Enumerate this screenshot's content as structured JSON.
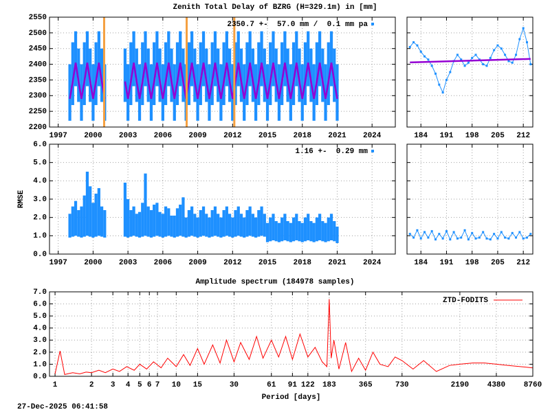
{
  "chart_data": [
    {
      "type": "range",
      "title": "Zenith Total Delay of BZRG (H=329.1m) in [mm]",
      "annotation": "2350.7 +-  57.0 mm /  0.1 mm pa",
      "color": "#1e90ff",
      "model_color": "#9400d3",
      "event_color": "#f5a040",
      "grid": true,
      "xlim": [
        1996.25,
        2026
      ],
      "xticks": [
        1997,
        2000,
        2003,
        2006,
        2009,
        2012,
        2015,
        2018,
        2021,
        2024
      ],
      "ylim": [
        2200,
        2550
      ],
      "yticks": [
        2200,
        2250,
        2300,
        2350,
        2400,
        2450,
        2500,
        2550
      ],
      "events": [
        2000.95,
        2008.05,
        2012.15
      ],
      "x": [
        1998,
        1998.25,
        1998.5,
        1998.75,
        1999,
        1999.25,
        1999.5,
        1999.75,
        2000,
        2000.25,
        2000.5,
        2000.75,
        2001,
        2002,
        2002.75,
        2003,
        2003.25,
        2003.5,
        2003.75,
        2004,
        2004.25,
        2004.5,
        2004.75,
        2005,
        2005.25,
        2005.5,
        2005.75,
        2006,
        2006.25,
        2006.5,
        2006.75,
        2007,
        2007.25,
        2007.5,
        2007.75,
        2008,
        2008.25,
        2008.5,
        2008.75,
        2009,
        2009.25,
        2009.5,
        2009.75,
        2010,
        2010.25,
        2010.5,
        2010.75,
        2011,
        2011.25,
        2011.5,
        2011.75,
        2012,
        2012.25,
        2012.5,
        2012.75,
        2013,
        2013.25,
        2013.5,
        2013.75,
        2014,
        2014.25,
        2014.5,
        2014.75,
        2015,
        2015.25,
        2015.5,
        2015.75,
        2016,
        2016.25,
        2016.5,
        2016.75,
        2017,
        2017.25,
        2017.5,
        2017.75,
        2018,
        2018.25,
        2018.5,
        2018.75,
        2019,
        2019.25,
        2019.5,
        2019.75,
        2020,
        2020.25,
        2020.5,
        2020.75,
        2021
      ],
      "high": [
        2400,
        2470,
        2505,
        2450,
        2400,
        2470,
        2505,
        2450,
        2400,
        2470,
        2505,
        2450,
        2400,
        null,
        2450,
        2400,
        2470,
        2505,
        2450,
        2400,
        2470,
        2505,
        2450,
        2400,
        2470,
        2505,
        2450,
        2400,
        2470,
        2505,
        2450,
        2400,
        2470,
        2505,
        2450,
        2400,
        2470,
        2505,
        2450,
        2400,
        2470,
        2505,
        2450,
        2400,
        2470,
        2505,
        2450,
        2400,
        2470,
        2505,
        2450,
        2400,
        2470,
        2505,
        2450,
        2400,
        2470,
        2505,
        2450,
        2400,
        2470,
        2505,
        2450,
        2400,
        2470,
        2505,
        2450,
        2400,
        2470,
        2505,
        2450,
        2400,
        2470,
        2505,
        2450,
        2400,
        2470,
        2505,
        2450,
        2400,
        2470,
        2505,
        2450,
        2400,
        2470,
        2505,
        2450,
        2400
      ],
      "low": [
        2220,
        2270,
        2330,
        2280,
        2220,
        2270,
        2330,
        2280,
        2220,
        2270,
        2330,
        2280,
        2220,
        null,
        2280,
        2220,
        2270,
        2330,
        2280,
        2220,
        2270,
        2330,
        2280,
        2220,
        2270,
        2330,
        2280,
        2220,
        2270,
        2330,
        2280,
        2220,
        2270,
        2330,
        2280,
        2220,
        2270,
        2330,
        2280,
        2220,
        2270,
        2330,
        2280,
        2220,
        2270,
        2330,
        2280,
        2220,
        2270,
        2330,
        2280,
        2220,
        2270,
        2330,
        2280,
        2220,
        2270,
        2330,
        2280,
        2220,
        2270,
        2330,
        2280,
        2220,
        2270,
        2330,
        2280,
        2220,
        2270,
        2330,
        2280,
        2220,
        2270,
        2330,
        2280,
        2220,
        2270,
        2330,
        2280,
        2220,
        2270,
        2330,
        2280,
        2220,
        2270,
        2330,
        2280,
        2220
      ],
      "model": [
        2290,
        2345,
        2405,
        2345,
        2290,
        2345,
        2405,
        2345,
        2290,
        2345,
        2405,
        2345,
        2290,
        null,
        2345,
        2290,
        2345,
        2405,
        2345,
        2290,
        2345,
        2405,
        2345,
        2290,
        2345,
        2405,
        2345,
        2290,
        2345,
        2405,
        2345,
        2290,
        2345,
        2405,
        2345,
        2290,
        2345,
        2405,
        2345,
        2290,
        2345,
        2405,
        2345,
        2290,
        2345,
        2405,
        2345,
        2290,
        2345,
        2405,
        2345,
        2290,
        2345,
        2405,
        2345,
        2290,
        2345,
        2405,
        2345,
        2290,
        2345,
        2405,
        2345,
        2290,
        2345,
        2405,
        2345,
        2290,
        2345,
        2405,
        2345,
        2290,
        2345,
        2405,
        2345,
        2290,
        2345,
        2405,
        2345,
        2290,
        2345,
        2405,
        2345,
        2290,
        2345,
        2405,
        2345,
        2290
      ]
    },
    {
      "type": "line",
      "xlim": [
        180.2,
        214.6
      ],
      "xticks": [
        184,
        191,
        198,
        205,
        212
      ],
      "model_color": "#9400d3",
      "x": [
        181,
        182,
        183,
        184,
        185,
        186,
        187,
        188,
        189,
        190,
        191,
        192,
        193,
        194,
        195,
        196,
        197,
        198,
        199,
        200,
        201,
        202,
        203,
        204,
        205,
        206,
        207,
        208,
        209,
        210,
        211,
        212,
        213,
        214
      ],
      "series": [
        {
          "color": "#1e90ff",
          "values": [
            2455,
            2470,
            2460,
            2440,
            2425,
            2415,
            2395,
            2370,
            2335,
            2310,
            2350,
            2375,
            2410,
            2430,
            2415,
            2395,
            2405,
            2420,
            2430,
            2415,
            2400,
            2395,
            2420,
            2445,
            2460,
            2450,
            2430,
            2410,
            2405,
            2430,
            2480,
            2515,
            2470,
            2400
          ]
        }
      ],
      "model_x": [
        181,
        214
      ],
      "model": [
        2406,
        2417
      ]
    },
    {
      "type": "range",
      "ylabel": "RMSE",
      "annotation": "1.16 +-  0.29 mm",
      "color": "#1e90ff",
      "grid": true,
      "xlim": [
        1996.25,
        2026
      ],
      "xticks": [
        1997,
        2000,
        2003,
        2006,
        2009,
        2012,
        2015,
        2018,
        2021,
        2024
      ],
      "ylim": [
        0,
        6
      ],
      "yticks": [
        {
          "value": 0,
          "label": "0.0"
        },
        {
          "value": 1,
          "label": "1.0"
        },
        {
          "value": 2,
          "label": "2.0"
        },
        {
          "value": 3,
          "label": "3.0"
        },
        {
          "value": 4,
          "label": "4.0"
        },
        {
          "value": 5,
          "label": "5.0"
        },
        {
          "value": 6,
          "label": "6.0"
        }
      ],
      "x": [
        1998,
        1998.25,
        1998.5,
        1998.75,
        1999,
        1999.25,
        1999.5,
        1999.75,
        2000,
        2000.25,
        2000.5,
        2000.75,
        2001,
        2002,
        2002.75,
        2003,
        2003.25,
        2003.5,
        2003.75,
        2004,
        2004.25,
        2004.5,
        2004.75,
        2005,
        2005.25,
        2005.5,
        2005.75,
        2006,
        2006.25,
        2006.5,
        2006.75,
        2007,
        2007.25,
        2007.5,
        2007.75,
        2008,
        2008.25,
        2008.5,
        2008.75,
        2009,
        2009.25,
        2009.5,
        2009.75,
        2010,
        2010.25,
        2010.5,
        2010.75,
        2011,
        2011.25,
        2011.5,
        2011.75,
        2012,
        2012.25,
        2012.5,
        2012.75,
        2013,
        2013.25,
        2013.5,
        2013.75,
        2014,
        2014.25,
        2014.5,
        2014.75,
        2015,
        2015.25,
        2015.5,
        2015.75,
        2016,
        2016.25,
        2016.5,
        2016.75,
        2017,
        2017.25,
        2017.5,
        2017.75,
        2018,
        2018.25,
        2018.5,
        2018.75,
        2019,
        2019.25,
        2019.5,
        2019.75,
        2020,
        2020.25,
        2020.5,
        2020.75,
        2021
      ],
      "high": [
        2.2,
        2.6,
        2.9,
        2.4,
        2.6,
        3.2,
        4.5,
        3.7,
        2.8,
        3.3,
        3.6,
        2.6,
        2.4,
        null,
        3.9,
        3.0,
        2.4,
        2.6,
        2.2,
        2.3,
        2.8,
        4.4,
        2.6,
        2.4,
        2.7,
        2.8,
        2.3,
        2.2,
        2.6,
        2.5,
        2.1,
        2.1,
        2.5,
        2.7,
        3.1,
        2.0,
        2.4,
        2.6,
        2.2,
        2.0,
        2.4,
        2.6,
        2.2,
        2.0,
        2.4,
        2.6,
        2.2,
        2.0,
        2.4,
        2.6,
        2.2,
        2.0,
        2.4,
        2.6,
        2.2,
        2.0,
        2.4,
        2.6,
        2.2,
        2.0,
        2.4,
        2.6,
        2.2,
        1.7,
        2.0,
        2.2,
        1.8,
        1.7,
        2.0,
        2.2,
        1.8,
        1.7,
        2.0,
        2.2,
        1.8,
        1.7,
        2.0,
        2.2,
        1.8,
        1.7,
        2.0,
        2.2,
        1.8,
        1.7,
        2.0,
        2.2,
        1.8,
        1.5
      ],
      "low": [
        0.9,
        0.95,
        1.0,
        0.95,
        0.9,
        0.95,
        1.0,
        0.95,
        0.9,
        0.95,
        1.0,
        0.95,
        0.9,
        null,
        0.95,
        0.9,
        0.95,
        1.0,
        0.95,
        0.9,
        0.95,
        1.0,
        0.95,
        0.9,
        0.95,
        1.0,
        0.95,
        0.9,
        0.95,
        1.0,
        0.95,
        0.9,
        0.95,
        1.0,
        0.95,
        0.9,
        0.95,
        1.0,
        0.95,
        0.9,
        0.95,
        1.0,
        0.95,
        0.9,
        0.95,
        1.0,
        0.95,
        0.9,
        0.95,
        1.0,
        0.95,
        0.9,
        0.95,
        1.0,
        0.95,
        0.9,
        0.95,
        1.0,
        0.95,
        0.9,
        0.95,
        1.0,
        0.95,
        0.65,
        0.7,
        0.75,
        0.7,
        0.65,
        0.7,
        0.75,
        0.7,
        0.65,
        0.7,
        0.75,
        0.7,
        0.65,
        0.7,
        0.75,
        0.7,
        0.65,
        0.7,
        0.75,
        0.7,
        0.65,
        0.7,
        0.75,
        0.7,
        0.6
      ]
    },
    {
      "type": "line",
      "xlim": [
        180.2,
        214.6
      ],
      "xticks": [
        184,
        191,
        198,
        205,
        212
      ],
      "x": [
        181,
        182,
        183,
        184,
        185,
        186,
        187,
        188,
        189,
        190,
        191,
        192,
        193,
        194,
        195,
        196,
        197,
        198,
        199,
        200,
        201,
        202,
        203,
        204,
        205,
        206,
        207,
        208,
        209,
        210,
        211,
        212,
        213,
        214
      ],
      "series": [
        {
          "color": "#1e90ff",
          "values": [
            1.1,
            0.9,
            1.3,
            0.85,
            1.2,
            0.9,
            1.25,
            0.8,
            1.1,
            0.85,
            1.25,
            0.8,
            1.2,
            0.85,
            0.9,
            1.3,
            0.8,
            1.15,
            0.85,
            0.9,
            1.2,
            0.85,
            0.8,
            1.1,
            0.85,
            1.2,
            0.9,
            0.85,
            1.15,
            0.9,
            1.2,
            0.85,
            0.9,
            1.1
          ]
        }
      ]
    },
    {
      "type": "line",
      "title": "Amplitude spectrum (184978 samples)",
      "xlabel": "Period [days]",
      "xlog": true,
      "grid": true,
      "legend": "top-right",
      "xlim": [
        0.9,
        8760
      ],
      "xticks": [
        1,
        2,
        3,
        4,
        5,
        6,
        7,
        10,
        15,
        30,
        61,
        91,
        122,
        183,
        365,
        730,
        2190,
        4380,
        8760
      ],
      "ylim": [
        0,
        7
      ],
      "yticks": [
        {
          "value": 0,
          "label": "0.0"
        },
        {
          "value": 1,
          "label": "1.0"
        },
        {
          "value": 2,
          "label": "2.0"
        },
        {
          "value": 3,
          "label": "3.0"
        },
        {
          "value": 4,
          "label": "4.0"
        },
        {
          "value": 5,
          "label": "5.0"
        },
        {
          "value": 6,
          "label": "6.0"
        },
        {
          "value": 7,
          "label": "7.0"
        }
      ],
      "x": [
        1,
        1.1,
        1.2,
        1.4,
        1.6,
        1.8,
        2,
        2.3,
        2.6,
        3,
        3.4,
        3.9,
        4.5,
        5,
        5.7,
        6.5,
        7.5,
        8.5,
        10,
        11.5,
        13,
        15,
        17,
        20,
        23,
        26,
        30,
        34,
        40,
        46,
        52,
        61,
        70,
        80,
        91,
        105,
        122,
        140,
        160,
        175,
        183,
        190,
        200,
        220,
        250,
        280,
        320,
        365,
        420,
        480,
        560,
        640,
        730,
        900,
        1100,
        1400,
        1800,
        2190,
        2800,
        3500,
        4380,
        5500,
        7000,
        8760
      ],
      "series": [
        {
          "name": "ZTD-FODITS",
          "color": "#ff0000",
          "values": [
            0.2,
            2.1,
            0.15,
            0.3,
            0.2,
            0.35,
            0.3,
            0.5,
            0.3,
            0.6,
            0.4,
            0.8,
            0.5,
            1.0,
            0.6,
            1.2,
            0.7,
            1.5,
            0.8,
            1.8,
            0.9,
            2.3,
            1.0,
            2.6,
            1.1,
            3.0,
            1.2,
            2.8,
            1.4,
            3.3,
            1.5,
            3.0,
            1.6,
            3.3,
            1.4,
            3.5,
            1.6,
            2.4,
            1.2,
            0.8,
            6.4,
            1.5,
            3.0,
            0.6,
            2.8,
            0.4,
            1.5,
            0.5,
            2.0,
            1.0,
            0.8,
            1.6,
            1.3,
            0.6,
            1.3,
            0.4,
            0.9,
            1.0,
            1.1,
            1.1,
            1.0,
            0.9,
            0.8,
            0.7
          ]
        }
      ]
    }
  ],
  "footer": "27-Dec-2025 06:41:58"
}
